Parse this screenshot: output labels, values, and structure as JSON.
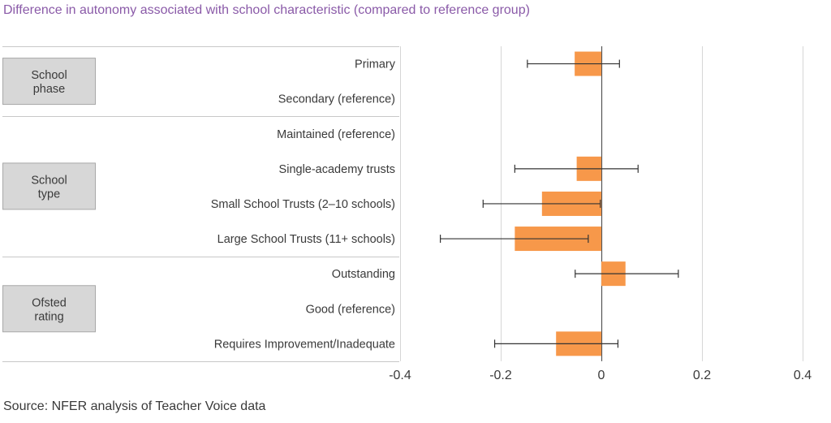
{
  "title": "Difference in autonomy associated with school characteristic (compared to reference group)",
  "source": "Source: NFER analysis of Teacher Voice data",
  "colors": {
    "bar": "#f7984a",
    "title": "#8a5aa8"
  },
  "chart_data": {
    "type": "bar",
    "orientation": "horizontal",
    "xlim": [
      -0.4,
      0.4
    ],
    "xticks": [
      -0.4,
      -0.2,
      0,
      0.2,
      0.4
    ],
    "xtick_labels": [
      "-0.4",
      "-0.2",
      "0",
      "0.2",
      "0.4"
    ],
    "grid": true,
    "groups": [
      {
        "label": [
          "School",
          "phase"
        ],
        "categories": [
          0,
          1
        ]
      },
      {
        "label": [
          "School",
          "type"
        ],
        "categories": [
          2,
          3,
          4,
          5
        ]
      },
      {
        "label": [
          "Ofsted",
          "rating"
        ],
        "categories": [
          6,
          7,
          8
        ]
      }
    ],
    "categories": [
      "Primary",
      "Secondary (reference)",
      "Maintained (reference)",
      "Single-academy trusts",
      "Small School Trusts (2–10 schools)",
      "Large School Trusts (11+ schools)",
      "Outstanding",
      "Good (reference)",
      "Requires Improvement/Inadequate"
    ],
    "values": [
      -0.053,
      null,
      null,
      -0.049,
      -0.118,
      -0.172,
      0.048,
      null,
      -0.09
    ],
    "ci_low": [
      -0.147,
      null,
      null,
      -0.172,
      -0.235,
      -0.32,
      -0.052,
      null,
      -0.212
    ],
    "ci_high": [
      0.036,
      null,
      null,
      0.073,
      -0.002,
      -0.026,
      0.153,
      null,
      0.033
    ]
  }
}
